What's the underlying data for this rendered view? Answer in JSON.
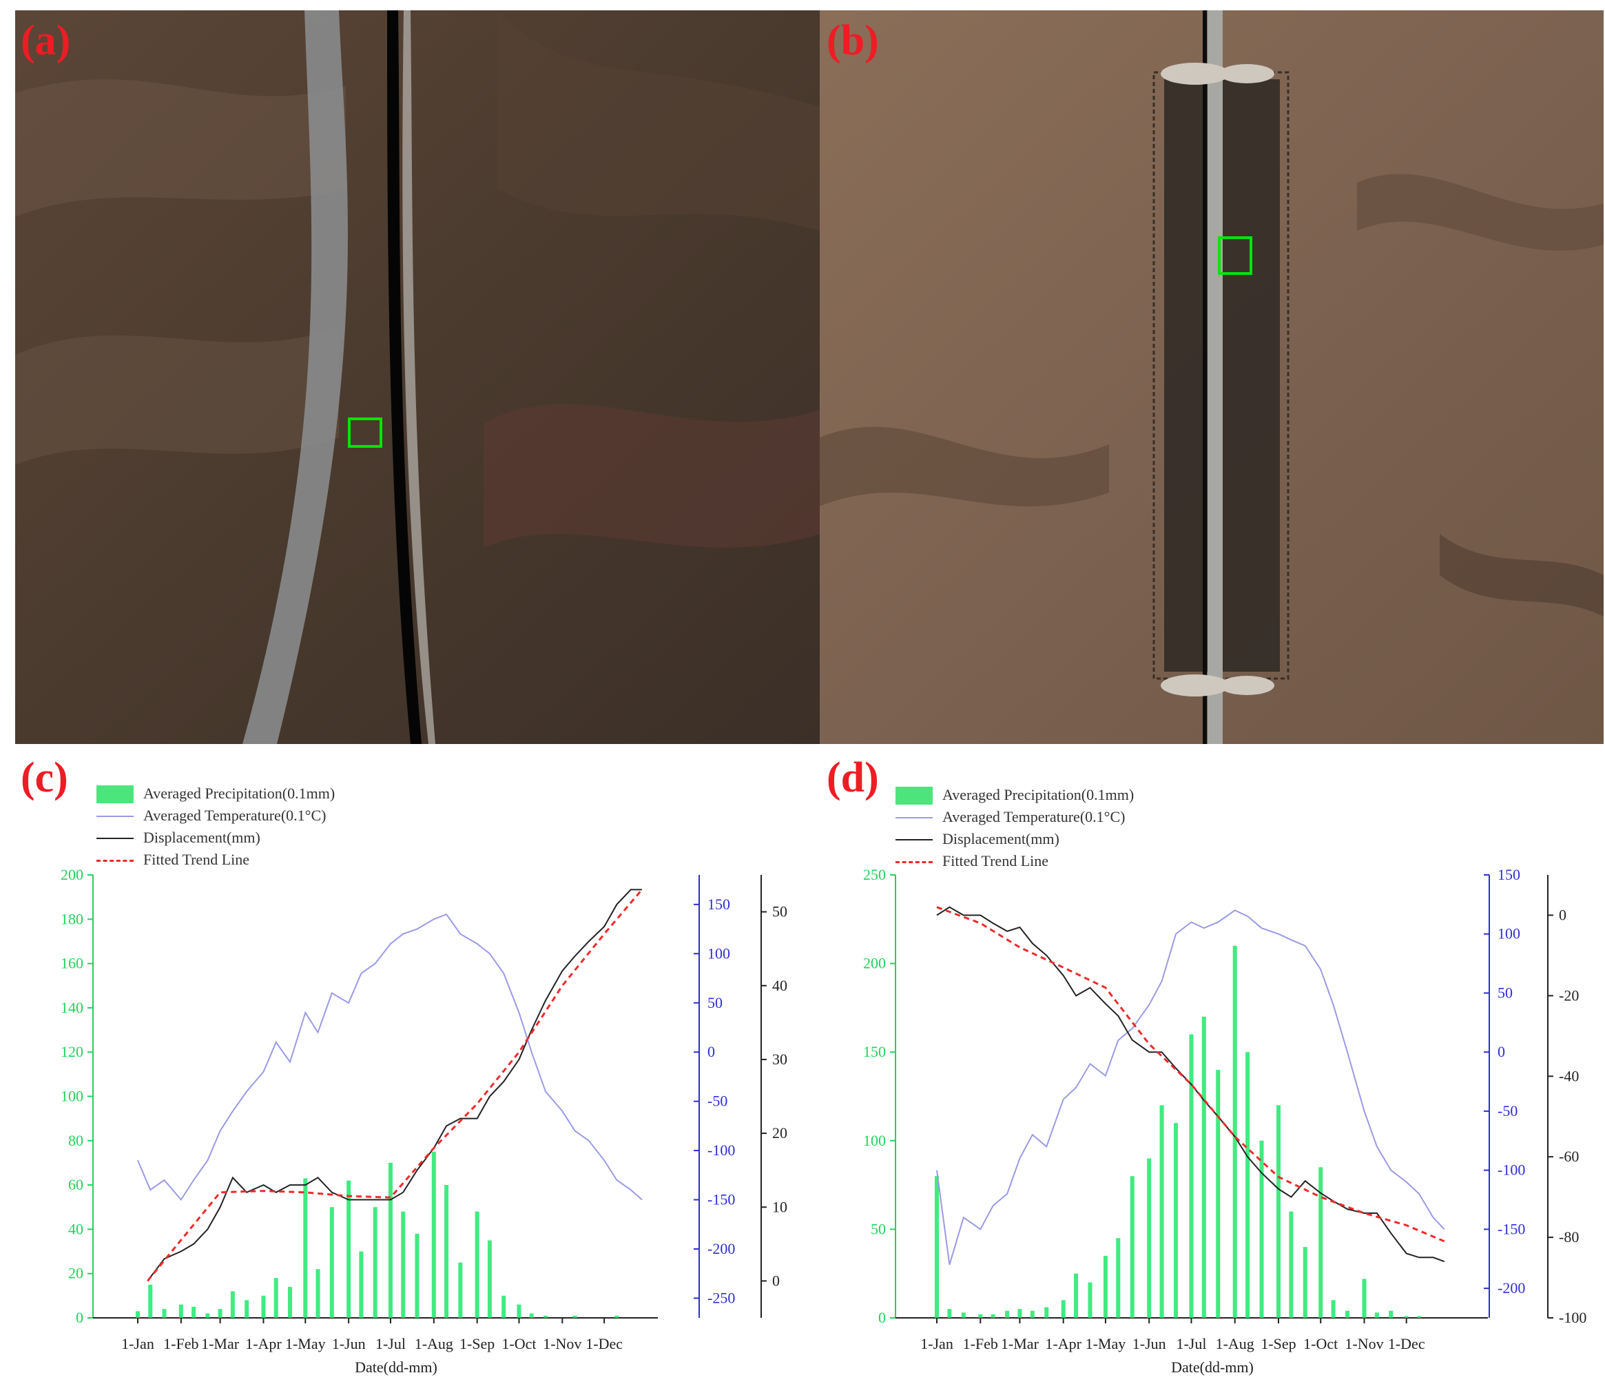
{
  "panels": {
    "a": {
      "label": "(a)"
    },
    "b": {
      "label": "(b)"
    },
    "c": {
      "label": "(c)"
    },
    "d": {
      "label": "(d)"
    }
  },
  "colors": {
    "precipitation": "#1fe86a",
    "temperature": "#9a9ae6",
    "displacement": "#222222",
    "trend": "#ef2a2a",
    "left_axis": "#1fd35a",
    "right_axis_temp": "#2d2dd6",
    "right_axis_disp": "#222222",
    "label_red": "#ee1c24",
    "marker_green": "#00e60a"
  },
  "legend": [
    {
      "key": "precip",
      "label": "Averaged Precipitation(0.1mm)"
    },
    {
      "key": "temp",
      "label": "Averaged Temperature(0.1°C)"
    },
    {
      "key": "disp",
      "label": "Displacement(mm)"
    },
    {
      "key": "trend",
      "label": "Fitted Trend Line"
    }
  ],
  "chart_data": [
    {
      "id": "c",
      "type": "bar",
      "xlabel": "Date(dd-mm)",
      "categories": [
        "1-Jan",
        "1-Feb",
        "1-Mar",
        "1-Apr",
        "1-May",
        "1-Jun",
        "1-Jul",
        "1-Aug",
        "1-Sep",
        "1-Oct",
        "1-Nov",
        "1-Dec"
      ],
      "axes": {
        "precipitation": {
          "range": [
            0,
            200
          ],
          "ticks": [
            0,
            20,
            40,
            60,
            80,
            100,
            120,
            140,
            160,
            180,
            200
          ],
          "tick_labels": [
            "0",
            "20",
            "40",
            "60",
            "80",
            "100",
            "120",
            "140",
            "160",
            "180",
            "200"
          ]
        },
        "temperature": {
          "range": [
            -270,
            180
          ],
          "ticks": [
            -250,
            -200,
            -150,
            -100,
            -50,
            0,
            50,
            100,
            150
          ],
          "tick_labels": [
            "-250",
            "-200",
            "-150",
            "-100",
            "-50",
            "0",
            "50",
            "100",
            "150"
          ]
        },
        "displacement": {
          "range": [
            -5,
            55
          ],
          "ticks": [
            0,
            10,
            20,
            30,
            40,
            50
          ],
          "tick_labels": [
            "0",
            "10",
            "20",
            "30",
            "40",
            "50"
          ]
        }
      },
      "series": [
        {
          "name": "Averaged Precipitation(0.1mm)",
          "kind": "bar",
          "x": [
            "1-Jan",
            "10-Jan",
            "20-Jan",
            "1-Feb",
            "10-Feb",
            "20-Feb",
            "1-Mar",
            "10-Mar",
            "20-Mar",
            "1-Apr",
            "10-Apr",
            "20-Apr",
            "1-May",
            "10-May",
            "20-May",
            "1-Jun",
            "10-Jun",
            "20-Jun",
            "1-Jul",
            "10-Jul",
            "20-Jul",
            "1-Aug",
            "10-Aug",
            "20-Aug",
            "1-Sep",
            "10-Sep",
            "20-Sep",
            "1-Oct",
            "10-Oct",
            "20-Oct",
            "1-Nov",
            "10-Nov",
            "20-Nov",
            "1-Dec",
            "10-Dec",
            "20-Dec"
          ],
          "values": [
            3,
            15,
            4,
            6,
            5,
            2,
            4,
            12,
            8,
            10,
            18,
            14,
            63,
            22,
            50,
            62,
            30,
            50,
            70,
            48,
            38,
            75,
            60,
            25,
            48,
            35,
            10,
            6,
            2,
            1,
            0,
            1,
            0,
            0,
            1,
            0
          ]
        },
        {
          "name": "Averaged Temperature(0.1°C)",
          "x": [
            "1-Jan",
            "10-Jan",
            "20-Jan",
            "1-Feb",
            "10-Feb",
            "20-Feb",
            "1-Mar",
            "10-Mar",
            "20-Mar",
            "1-Apr",
            "10-Apr",
            "20-Apr",
            "1-May",
            "10-May",
            "20-May",
            "1-Jun",
            "10-Jun",
            "20-Jun",
            "1-Jul",
            "10-Jul",
            "20-Jul",
            "1-Aug",
            "10-Aug",
            "20-Aug",
            "1-Sep",
            "10-Sep",
            "20-Sep",
            "1-Oct",
            "10-Oct",
            "20-Oct",
            "1-Nov",
            "10-Nov",
            "20-Nov",
            "1-Dec",
            "10-Dec",
            "20-Dec",
            "28-Dec"
          ],
          "values": [
            -110,
            -140,
            -130,
            -150,
            -130,
            -110,
            -80,
            -60,
            -40,
            -20,
            10,
            -10,
            40,
            20,
            60,
            50,
            80,
            90,
            110,
            120,
            125,
            135,
            140,
            120,
            110,
            100,
            80,
            40,
            0,
            -40,
            -60,
            -80,
            -90,
            -110,
            -130,
            -140,
            -150
          ]
        },
        {
          "name": "Displacement(mm)",
          "x": [
            "8-Jan",
            "20-Jan",
            "1-Feb",
            "10-Feb",
            "20-Feb",
            "1-Mar",
            "10-Mar",
            "20-Mar",
            "1-Apr",
            "10-Apr",
            "20-Apr",
            "1-May",
            "10-May",
            "20-May",
            "1-Jun",
            "10-Jun",
            "20-Jun",
            "1-Jul",
            "10-Jul",
            "20-Jul",
            "1-Aug",
            "10-Aug",
            "20-Aug",
            "1-Sep",
            "10-Sep",
            "20-Sep",
            "1-Oct",
            "10-Oct",
            "20-Oct",
            "1-Nov",
            "10-Nov",
            "20-Nov",
            "1-Dec",
            "10-Dec",
            "20-Dec",
            "28-Dec"
          ],
          "values": [
            0,
            3,
            4,
            5,
            7,
            10,
            14,
            12,
            13,
            12,
            13,
            13,
            14,
            12,
            11,
            11,
            11,
            11,
            12,
            15,
            18,
            21,
            22,
            22,
            25,
            27,
            30,
            34,
            38,
            42,
            44,
            46,
            48,
            51,
            53,
            53
          ]
        },
        {
          "name": "Fitted Trend Line",
          "x": [
            "8-Jan",
            "1-Mar",
            "1-Apr",
            "1-May",
            "1-Jun",
            "1-Jul",
            "1-Aug",
            "1-Sep",
            "1-Oct",
            "1-Nov",
            "1-Dec",
            "28-Dec"
          ],
          "values": [
            0,
            12,
            12.2,
            12.0,
            11.5,
            11.3,
            18,
            24,
            31,
            40,
            47,
            53
          ]
        }
      ]
    },
    {
      "id": "d",
      "type": "bar",
      "xlabel": "Date(dd-mm)",
      "categories": [
        "1-Jan",
        "1-Feb",
        "1-Mar",
        "1-Apr",
        "1-May",
        "1-Jun",
        "1-Jul",
        "1-Aug",
        "1-Sep",
        "1-Oct",
        "1-Nov",
        "1-Dec"
      ],
      "axes": {
        "precipitation": {
          "range": [
            0,
            250
          ],
          "ticks": [
            0,
            50,
            100,
            150,
            200,
            250
          ],
          "tick_labels": [
            "0",
            "50",
            "100",
            "150",
            "200",
            "250"
          ]
        },
        "temperature": {
          "range": [
            -225,
            150
          ],
          "ticks": [
            -200,
            -150,
            -100,
            -50,
            0,
            50,
            100,
            150
          ],
          "tick_labels": [
            "-200",
            "-150",
            "-100",
            "-50",
            "0",
            "50",
            "100",
            "150"
          ]
        },
        "displacement": {
          "range": [
            -100,
            10
          ],
          "ticks": [
            -100,
            -80,
            -60,
            -40,
            -20,
            0
          ],
          "tick_labels": [
            "-100",
            "-80",
            "-60",
            "-40",
            "-20",
            "0"
          ]
        }
      },
      "series": [
        {
          "name": "Averaged Precipitation(0.1mm)",
          "kind": "bar",
          "x": [
            "1-Jan",
            "10-Jan",
            "20-Jan",
            "1-Feb",
            "10-Feb",
            "20-Feb",
            "1-Mar",
            "10-Mar",
            "20-Mar",
            "1-Apr",
            "10-Apr",
            "20-Apr",
            "1-May",
            "10-May",
            "20-May",
            "1-Jun",
            "10-Jun",
            "20-Jun",
            "1-Jul",
            "10-Jul",
            "20-Jul",
            "1-Aug",
            "10-Aug",
            "20-Aug",
            "1-Sep",
            "10-Sep",
            "20-Sep",
            "1-Oct",
            "10-Oct",
            "20-Oct",
            "1-Nov",
            "10-Nov",
            "20-Nov",
            "1-Dec",
            "10-Dec",
            "20-Dec"
          ],
          "values": [
            80,
            5,
            3,
            2,
            2,
            4,
            5,
            4,
            6,
            10,
            25,
            20,
            35,
            45,
            80,
            90,
            120,
            110,
            160,
            170,
            140,
            210,
            150,
            100,
            120,
            60,
            40,
            85,
            10,
            4,
            22,
            3,
            4,
            1,
            1,
            0
          ]
        },
        {
          "name": "Averaged Temperature(0.1°C)",
          "x": [
            "1-Jan",
            "10-Jan",
            "20-Jan",
            "1-Feb",
            "10-Feb",
            "20-Feb",
            "1-Mar",
            "10-Mar",
            "20-Mar",
            "1-Apr",
            "10-Apr",
            "20-Apr",
            "1-May",
            "10-May",
            "20-May",
            "1-Jun",
            "10-Jun",
            "20-Jun",
            "1-Jul",
            "10-Jul",
            "20-Jul",
            "1-Aug",
            "10-Aug",
            "20-Aug",
            "1-Sep",
            "10-Sep",
            "20-Sep",
            "1-Oct",
            "10-Oct",
            "20-Oct",
            "1-Nov",
            "10-Nov",
            "20-Nov",
            "1-Dec",
            "10-Dec",
            "20-Dec",
            "28-Dec"
          ],
          "values": [
            -100,
            -180,
            -140,
            -150,
            -130,
            -120,
            -90,
            -70,
            -80,
            -40,
            -30,
            -10,
            -20,
            10,
            20,
            40,
            60,
            100,
            110,
            105,
            110,
            120,
            115,
            105,
            100,
            95,
            90,
            70,
            40,
            0,
            -50,
            -80,
            -100,
            -110,
            -120,
            -140,
            -150
          ]
        },
        {
          "name": "Displacement(mm)",
          "x": [
            "1-Jan",
            "10-Jan",
            "20-Jan",
            "1-Feb",
            "10-Feb",
            "20-Feb",
            "1-Mar",
            "10-Mar",
            "20-Mar",
            "1-Apr",
            "10-Apr",
            "20-Apr",
            "1-May",
            "10-May",
            "20-May",
            "1-Jun",
            "10-Jun",
            "20-Jun",
            "1-Jul",
            "10-Jul",
            "20-Jul",
            "1-Aug",
            "10-Aug",
            "20-Aug",
            "1-Sep",
            "10-Sep",
            "20-Sep",
            "1-Oct",
            "10-Oct",
            "20-Oct",
            "1-Nov",
            "10-Nov",
            "20-Nov",
            "1-Dec",
            "10-Dec",
            "20-Dec",
            "28-Dec"
          ],
          "values": [
            0,
            2,
            0,
            0,
            -2,
            -4,
            -3,
            -7,
            -10,
            -15,
            -20,
            -18,
            -22,
            -25,
            -31,
            -34,
            -34,
            -38,
            -42,
            -46,
            -50,
            -55,
            -60,
            -64,
            -68,
            -70,
            -66,
            -69,
            -71,
            -73,
            -74,
            -74,
            -79,
            -84,
            -85,
            -85,
            -86
          ]
        },
        {
          "name": "Fitted Trend Line",
          "x": [
            "1-Jan",
            "1-Feb",
            "1-Mar",
            "1-Apr",
            "1-May",
            "1-Jun",
            "1-Jul",
            "1-Aug",
            "1-Sep",
            "1-Oct",
            "1-Nov",
            "1-Dec",
            "28-Dec"
          ],
          "values": [
            2,
            -2,
            -8,
            -13,
            -18,
            -32,
            -42,
            -55,
            -65,
            -70,
            -74,
            -77,
            -81
          ]
        }
      ]
    }
  ]
}
